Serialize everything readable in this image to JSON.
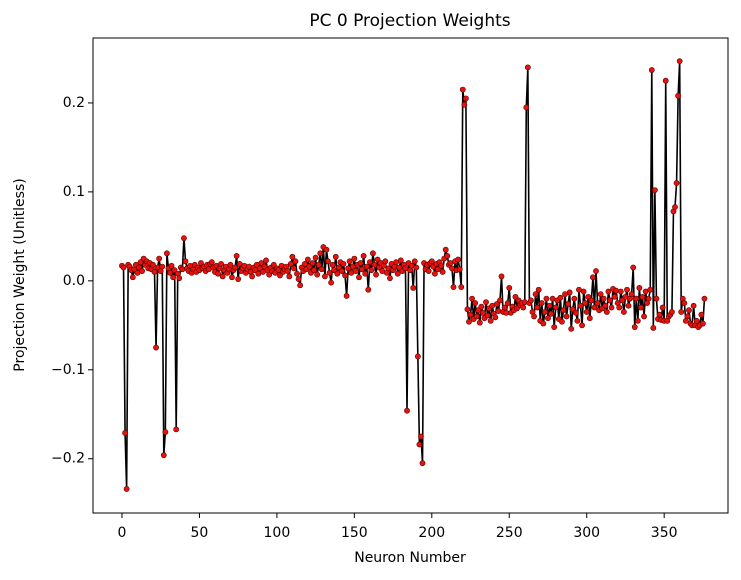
{
  "chart_data": {
    "type": "line",
    "title": "PC 0 Projection Weights",
    "x_label": "Neuron Number",
    "y_label": "Projection Weight (Unitless)",
    "line_color": "#000000",
    "marker_color": "#e8120c",
    "xlim": [
      -18.7,
      391.2
    ],
    "ylim": [
      -0.261,
      0.273
    ],
    "xticks": [
      0,
      50,
      100,
      150,
      200,
      250,
      300,
      350
    ],
    "yticks": [
      {
        "value": -0.2,
        "label": "−0.2"
      },
      {
        "value": -0.1,
        "label": "−0.1"
      },
      {
        "value": 0,
        "label": "0.0"
      },
      0.1,
      0.2
    ],
    "x": [
      0,
      1,
      2,
      3,
      4,
      5,
      6,
      7,
      8,
      9,
      10,
      11,
      12,
      13,
      14,
      15,
      16,
      17,
      18,
      19,
      20,
      21,
      22,
      23,
      24,
      25,
      26,
      27,
      28,
      29,
      30,
      31,
      32,
      33,
      34,
      35,
      36,
      37,
      38,
      39,
      40,
      41,
      42,
      43,
      44,
      45,
      46,
      47,
      48,
      49,
      50,
      51,
      52,
      53,
      54,
      55,
      56,
      57,
      58,
      59,
      60,
      61,
      62,
      63,
      64,
      65,
      66,
      67,
      68,
      69,
      70,
      71,
      72,
      73,
      74,
      75,
      76,
      77,
      78,
      79,
      80,
      81,
      82,
      83,
      84,
      85,
      86,
      87,
      88,
      89,
      90,
      91,
      92,
      93,
      94,
      95,
      96,
      97,
      98,
      99,
      100,
      101,
      102,
      103,
      104,
      105,
      106,
      107,
      108,
      109,
      110,
      111,
      112,
      113,
      114,
      115,
      116,
      117,
      118,
      119,
      120,
      121,
      122,
      123,
      124,
      125,
      126,
      127,
      128,
      129,
      130,
      131,
      132,
      133,
      134,
      135,
      136,
      137,
      138,
      139,
      140,
      141,
      142,
      143,
      144,
      145,
      146,
      147,
      148,
      149,
      150,
      151,
      152,
      153,
      154,
      155,
      156,
      157,
      158,
      159,
      160,
      161,
      162,
      163,
      164,
      165,
      166,
      167,
      168,
      169,
      170,
      171,
      172,
      173,
      174,
      175,
      176,
      177,
      178,
      179,
      180,
      181,
      182,
      183,
      184,
      185,
      186,
      187,
      188,
      189,
      190,
      191,
      192,
      193,
      194,
      195,
      196,
      197,
      198,
      199,
      200,
      201,
      202,
      203,
      204,
      205,
      206,
      207,
      208,
      209,
      210,
      211,
      212,
      213,
      214,
      215,
      216,
      217,
      218,
      219,
      220,
      221,
      222,
      223,
      224,
      225,
      226,
      227,
      228,
      229,
      230,
      231,
      232,
      233,
      234,
      235,
      236,
      237,
      238,
      239,
      240,
      241,
      242,
      243,
      244,
      245,
      246,
      247,
      248,
      249,
      250,
      251,
      252,
      253,
      254,
      255,
      256,
      257,
      258,
      259,
      260,
      261,
      262,
      263,
      264,
      265,
      266,
      267,
      268,
      269,
      270,
      271,
      272,
      273,
      274,
      275,
      276,
      277,
      278,
      279,
      280,
      281,
      282,
      283,
      284,
      285,
      286,
      287,
      288,
      289,
      290,
      291,
      292,
      293,
      294,
      295,
      296,
      297,
      298,
      299,
      300,
      301,
      302,
      303,
      304,
      305,
      306,
      307,
      308,
      309,
      310,
      311,
      312,
      313,
      314,
      315,
      316,
      317,
      318,
      319,
      320,
      321,
      322,
      323,
      324,
      325,
      326,
      327,
      328,
      329,
      330,
      331,
      332,
      333,
      334,
      335,
      336,
      337,
      338,
      339,
      340,
      341,
      342,
      343,
      344,
      345,
      346,
      347,
      348,
      349,
      350,
      351,
      352,
      353,
      354,
      355,
      356,
      357,
      358,
      359,
      360,
      361,
      362,
      363,
      364,
      365,
      366,
      367,
      368,
      369,
      370,
      371,
      372,
      373,
      374,
      375,
      376
    ],
    "values": [
      0.017,
      0.015,
      -0.171,
      -0.234,
      0.018,
      0.016,
      0.012,
      0.004,
      0.013,
      0.018,
      0.009,
      0.015,
      0.021,
      0.011,
      0.025,
      0.018,
      0.022,
      0.014,
      0.02,
      0.013,
      0.018,
      0.01,
      -0.075,
      0.015,
      0.025,
      0.011,
      0.016,
      -0.196,
      -0.17,
      0.031,
      0.014,
      0.009,
      0.017,
      0.004,
      0.012,
      -0.167,
      0.008,
      0.003,
      0.015,
      0.013,
      0.048,
      0.022,
      0.014,
      0.011,
      0.017,
      0.009,
      0.013,
      0.018,
      0.01,
      0.015,
      0.012,
      0.02,
      0.014,
      0.016,
      0.011,
      0.018,
      0.013,
      0.019,
      0.021,
      0.015,
      0.01,
      0.017,
      0.008,
      0.014,
      0.019,
      0.005,
      0.012,
      0.016,
      0.009,
      0.013,
      0.018,
      0.004,
      0.012,
      0.015,
      0.028,
      0.002,
      0.019,
      0.011,
      0.014,
      0.017,
      0.009,
      0.013,
      0.016,
      0.01,
      0.005,
      0.015,
      0.012,
      0.018,
      0.008,
      0.014,
      0.02,
      0.01,
      0.016,
      0.023,
      0.012,
      0.007,
      0.015,
      0.011,
      0.018,
      0.009,
      0.014,
      0.012,
      0.006,
      0.017,
      0.01,
      0.013,
      0.016,
      0.011,
      0.005,
      0.019,
      0.027,
      0.014,
      0.022,
      0.008,
      0.002,
      -0.005,
      0.015,
      0.011,
      0.019,
      0.013,
      0.024,
      0.016,
      0.009,
      0.02,
      0.012,
      0.026,
      0.007,
      0.018,
      0.031,
      0.013,
      0.038,
      0.005,
      0.035,
      0.022,
      0.009,
      -0.002,
      0.018,
      0.012,
      0.027,
      0.008,
      0.015,
      0.021,
      0.011,
      0.019,
      0.006,
      -0.017,
      0.014,
      0.022,
      0.009,
      0.016,
      0.025,
      0.011,
      0.018,
      0.004,
      0.02,
      0.013,
      0.028,
      0.008,
      0.016,
      -0.01,
      0.021,
      0.012,
      0.031,
      0.018,
      0.007,
      0.024,
      0.015,
      0.02,
      0.011,
      0.017,
      0.022,
      0.009,
      0.014,
      0.003,
      0.019,
      0.012,
      0.016,
      0.021,
      0.008,
      0.015,
      0.023,
      0.011,
      0.018,
      0.014,
      -0.146,
      0.02,
      0.012,
      0.017,
      -0.008,
      0.022,
      0.015,
      -0.085,
      -0.184,
      -0.175,
      -0.205,
      0.02,
      0.013,
      0.018,
      0.011,
      0.02,
      0.022,
      0.016,
      0.008,
      0.019,
      0.013,
      0.021,
      0.017,
      0.01,
      0.025,
      0.035,
      0.028,
      0.018,
      0.02,
      0.014,
      -0.007,
      0.022,
      0.012,
      0.024,
      0.013,
      -0.007,
      0.215,
      0.198,
      0.205,
      -0.032,
      -0.046,
      -0.038,
      -0.02,
      -0.043,
      -0.025,
      -0.04,
      -0.033,
      -0.047,
      -0.029,
      -0.036,
      -0.042,
      -0.024,
      -0.039,
      -0.031,
      -0.045,
      -0.028,
      -0.037,
      -0.041,
      -0.026,
      -0.034,
      -0.022,
      0.005,
      -0.035,
      -0.03,
      -0.036,
      -0.025,
      -0.008,
      -0.036,
      -0.029,
      -0.033,
      -0.018,
      -0.031,
      -0.022,
      -0.027,
      -0.025,
      -0.03,
      -0.024,
      0.195,
      0.24,
      -0.025,
      -0.022,
      -0.035,
      -0.04,
      -0.015,
      -0.03,
      -0.01,
      -0.045,
      -0.025,
      -0.048,
      -0.035,
      -0.02,
      -0.042,
      -0.028,
      -0.037,
      -0.02,
      -0.052,
      -0.03,
      -0.022,
      -0.043,
      -0.019,
      -0.046,
      -0.033,
      -0.015,
      -0.04,
      -0.026,
      -0.013,
      -0.054,
      -0.032,
      -0.02,
      -0.036,
      -0.045,
      -0.01,
      -0.028,
      -0.05,
      -0.012,
      -0.025,
      -0.035,
      -0.018,
      -0.042,
      -0.022,
      0.004,
      -0.03,
      0.011,
      -0.025,
      -0.033,
      -0.015,
      -0.031,
      -0.02,
      -0.028,
      -0.035,
      -0.012,
      -0.022,
      -0.03,
      -0.009,
      -0.018,
      -0.011,
      -0.025,
      -0.03,
      -0.012,
      -0.022,
      -0.035,
      -0.018,
      -0.01,
      -0.028,
      -0.02,
      -0.015,
      0.015,
      -0.052,
      -0.02,
      -0.045,
      -0.008,
      -0.03,
      -0.018,
      -0.04,
      -0.012,
      -0.025,
      -0.02,
      -0.01,
      0.237,
      -0.053,
      0.102,
      -0.02,
      -0.043,
      -0.038,
      -0.044,
      -0.03,
      -0.045,
      0.225,
      -0.045,
      -0.04,
      -0.038,
      -0.035,
      0.078,
      0.083,
      0.11,
      0.208,
      0.247,
      -0.035,
      -0.02,
      -0.025,
      -0.045,
      -0.04,
      -0.033,
      -0.048,
      -0.05,
      -0.028,
      -0.05,
      -0.045,
      -0.052,
      -0.05,
      -0.038,
      -0.048,
      -0.02
    ]
  }
}
